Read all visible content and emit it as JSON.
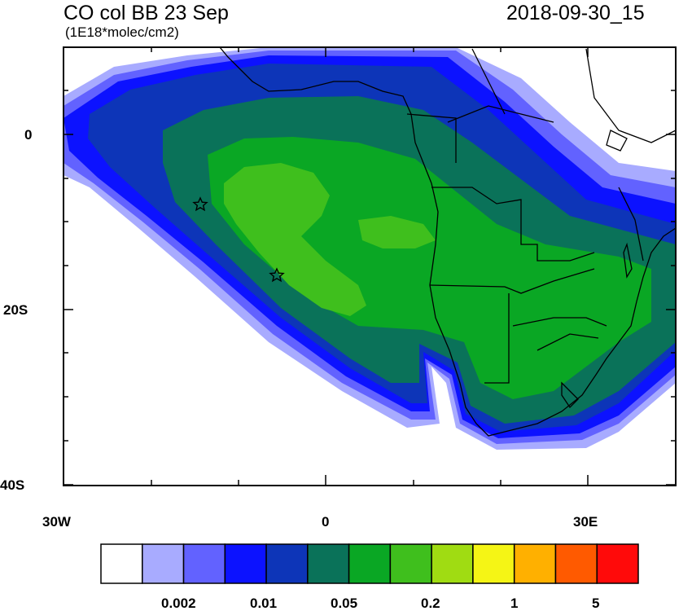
{
  "header": {
    "title": "CO col BB 23 Sep",
    "units": "(1E18*molec/cm2)",
    "valid_time": "2018-09-30_15"
  },
  "map": {
    "projection": "lat-lon",
    "lon_range": [
      -30,
      40
    ],
    "lat_range": [
      -40,
      10
    ],
    "lat_labels": [
      "0",
      "20S",
      "40S"
    ],
    "lon_labels": [
      "30W",
      "0",
      "30E"
    ],
    "markers": [
      {
        "type": "star",
        "lon": -14.4,
        "lat": -7.9
      },
      {
        "type": "star",
        "lon": -5.7,
        "lat": -15.9
      }
    ]
  },
  "colorbar": {
    "colors": [
      "#ffffff",
      "#a8abff",
      "#6262ff",
      "#0c12ff",
      "#0d35b8",
      "#0a7259",
      "#0aa724",
      "#3fbf1d",
      "#a0dc12",
      "#f5f515",
      "#ffb000",
      "#ff5a00",
      "#ff0a0a"
    ],
    "labels": [
      "0.002",
      "0.01",
      "0.05",
      "0.2",
      "1",
      "5"
    ]
  },
  "colors": {
    "land_outline": "#000000",
    "frame": "#000000"
  }
}
